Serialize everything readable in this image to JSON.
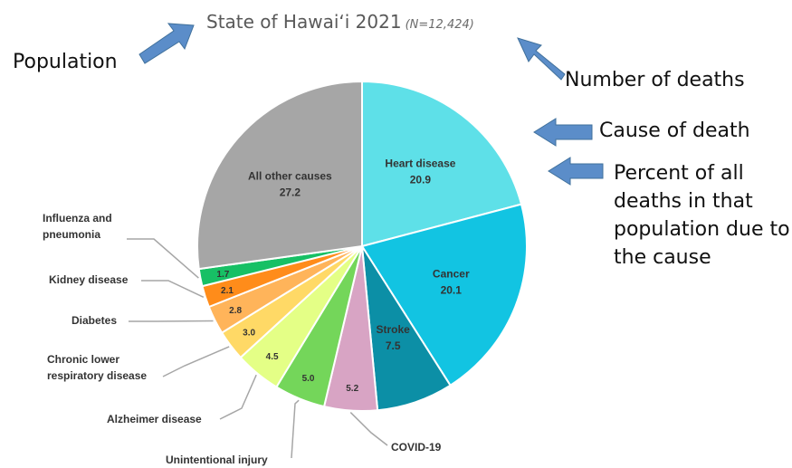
{
  "title": {
    "main": "State of Hawaiʻi 2021",
    "n": "(N=12,424)"
  },
  "annotations": {
    "population": "Population",
    "number_of_deaths": "Number of deaths",
    "cause_of_death": "Cause of death",
    "percent_line1": "Percent of all",
    "percent_line2": "deaths in that",
    "percent_line3": "population due to",
    "percent_line4": "the cause"
  },
  "chart_data": {
    "type": "pie",
    "title": "State of Hawaiʻi 2021",
    "subtitle": "(N=12,424)",
    "slices": [
      {
        "label": "Heart disease",
        "value": 20.9,
        "color": "#5ee0e8",
        "label_inside": true
      },
      {
        "label": "Cancer",
        "value": 20.1,
        "color": "#12c4e2",
        "label_inside": true
      },
      {
        "label": "Stroke",
        "value": 7.5,
        "color": "#0c8fa6",
        "label_inside": true
      },
      {
        "label": "COVID-19",
        "value": 5.2,
        "color": "#d8a4c4",
        "label_inside": false
      },
      {
        "label": "Unintentional injury",
        "value": 5.0,
        "color": "#74d65a",
        "label_inside": false
      },
      {
        "label": "Alzheimer disease",
        "value": 4.5,
        "color": "#e4ff86",
        "label_inside": false
      },
      {
        "label": "Chronic lower respiratory disease",
        "value": 3.0,
        "color": "#ffd966",
        "label_inside": false
      },
      {
        "label": "Diabetes",
        "value": 2.8,
        "color": "#ffb45a",
        "label_inside": false
      },
      {
        "label": "Kidney disease",
        "value": 2.1,
        "color": "#ff8c1a",
        "label_inside": false
      },
      {
        "label": "Influenza and pneumonia",
        "value": 1.7,
        "color": "#17c065",
        "label_inside": false
      },
      {
        "label": "All other causes",
        "value": 27.2,
        "color": "#a6a6a6",
        "label_inside": true
      }
    ]
  },
  "colors": {
    "arrow": "#5b8dc9",
    "arrow_stroke": "#41719c",
    "leader": "#a6a6a6"
  }
}
